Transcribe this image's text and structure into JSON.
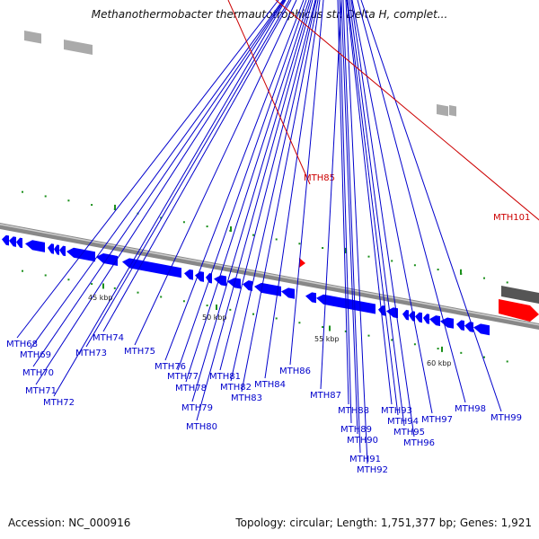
{
  "title": "Methanothermobacter thermautotrophicus str. Delta H, complet...",
  "footer": {
    "accession": "Accession: NC_000916",
    "summary": "Topology: circular; Length: 1,751,377 bp; Genes: 1,921"
  },
  "colors": {
    "gene_forward_highlight": "#ff0000",
    "gene_reverse": "#0000ff",
    "rna": "#aaaaaa",
    "label_normal": "#0000cc",
    "label_highlight": "#cc0000",
    "backbone": "#888888",
    "tick": "#1a8f1a"
  },
  "chart_data": {
    "type": "genome-map",
    "ticks": [
      "45 kbp",
      "50 kbp",
      "55 kbp",
      "60 kbp"
    ],
    "genes": [
      {
        "name": "MTH68",
        "strand": "-"
      },
      {
        "name": "MTH69",
        "strand": "-"
      },
      {
        "name": "MTH70",
        "strand": "-"
      },
      {
        "name": "MTH71",
        "strand": "-"
      },
      {
        "name": "MTH72",
        "strand": "-"
      },
      {
        "name": "MTH73",
        "strand": "-"
      },
      {
        "name": "MTH74",
        "strand": "-"
      },
      {
        "name": "MTH75",
        "strand": "-"
      },
      {
        "name": "MTH76",
        "strand": "-"
      },
      {
        "name": "MTH77",
        "strand": "-"
      },
      {
        "name": "MTH78",
        "strand": "-"
      },
      {
        "name": "MTH79",
        "strand": "-"
      },
      {
        "name": "MTH80",
        "strand": "-"
      },
      {
        "name": "MTH81",
        "strand": "-"
      },
      {
        "name": "MTH82",
        "strand": "-"
      },
      {
        "name": "MTH83",
        "strand": "-"
      },
      {
        "name": "MTH84",
        "strand": "-"
      },
      {
        "name": "MTH85",
        "strand": "+",
        "highlight": true
      },
      {
        "name": "MTH86",
        "strand": "-"
      },
      {
        "name": "MTH87",
        "strand": "-"
      },
      {
        "name": "MTH88",
        "strand": "-"
      },
      {
        "name": "MTH89",
        "strand": "-"
      },
      {
        "name": "MTH90",
        "strand": "-"
      },
      {
        "name": "MTH91",
        "strand": "-"
      },
      {
        "name": "MTH92",
        "strand": "-"
      },
      {
        "name": "MTH93",
        "strand": "-"
      },
      {
        "name": "MTH94",
        "strand": "-"
      },
      {
        "name": "MTH95",
        "strand": "-"
      },
      {
        "name": "MTH96",
        "strand": "-"
      },
      {
        "name": "MTH97",
        "strand": "-"
      },
      {
        "name": "MTH98",
        "strand": "-"
      },
      {
        "name": "MTH99",
        "strand": "-"
      },
      {
        "name": "MTH101",
        "strand": "+",
        "highlight": true
      }
    ]
  }
}
